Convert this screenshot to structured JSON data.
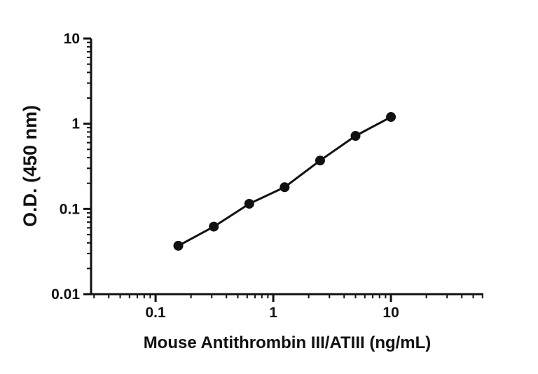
{
  "background_color": "#ffffff",
  "chart_data": {
    "type": "scatter",
    "title": "",
    "xlabel": "Mouse Antithrombin III/ATIII (ng/mL)",
    "ylabel": "O.D. (450 nm)",
    "x_scale": "log",
    "y_scale": "log",
    "xlim": [
      0.0283,
      61
    ],
    "ylim": [
      0.01,
      10
    ],
    "x": [
      0.156,
      0.3125,
      0.625,
      1.25,
      2.5,
      5,
      10
    ],
    "y": [
      0.037,
      0.062,
      0.115,
      0.18,
      0.37,
      0.72,
      1.2
    ],
    "x_major_ticks": [
      0.1,
      1,
      10
    ],
    "x_tick_labels": [
      "0.1",
      "1",
      "10"
    ],
    "y_major_ticks": [
      0.01,
      0.1,
      1,
      10
    ],
    "y_tick_labels": [
      "0.01",
      "0.1",
      "1",
      "10"
    ],
    "line_color": "#111111",
    "marker_color": "#111111",
    "marker": "circle",
    "grid": false,
    "legend": "none"
  }
}
